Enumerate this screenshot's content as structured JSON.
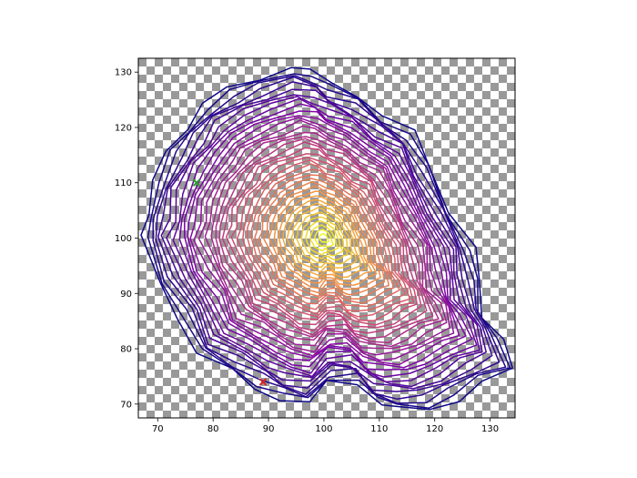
{
  "chart_data": {
    "type": "line",
    "title": "",
    "xlabel": "",
    "ylabel": "",
    "xlim": [
      66.5,
      134.5
    ],
    "ylim": [
      67.5,
      132.5
    ],
    "x_ticks": [
      70,
      80,
      90,
      100,
      110,
      120,
      130
    ],
    "y_ticks": [
      70,
      80,
      90,
      100,
      110,
      120,
      130
    ],
    "x_tick_labels": [
      "70",
      "80",
      "90",
      "100",
      "110",
      "120",
      "130"
    ],
    "y_tick_labels": [
      "70",
      "80",
      "90",
      "100",
      "110",
      "120",
      "130"
    ],
    "grid": false,
    "background": "checkerboard",
    "colormap": "plasma",
    "path_center": [
      100,
      100
    ],
    "outer_path_vertices": [
      [
        67,
        100
      ],
      [
        70,
        92
      ],
      [
        74,
        86
      ],
      [
        77,
        79
      ],
      [
        83,
        76
      ],
      [
        88,
        73
      ],
      [
        92,
        71
      ],
      [
        97,
        70
      ],
      [
        101,
        74
      ],
      [
        106,
        74
      ],
      [
        110,
        70
      ],
      [
        114,
        69
      ],
      [
        119,
        69
      ],
      [
        124,
        71
      ],
      [
        129,
        74
      ],
      [
        134,
        76
      ],
      [
        132,
        82
      ],
      [
        129,
        86
      ],
      [
        128,
        92
      ],
      [
        127,
        98
      ],
      [
        123,
        105
      ],
      [
        119,
        113
      ],
      [
        116,
        119
      ],
      [
        111,
        122
      ],
      [
        106,
        126
      ],
      [
        101,
        128
      ],
      [
        98,
        130
      ],
      [
        94,
        131
      ],
      [
        88,
        129
      ],
      [
        83,
        127
      ],
      [
        78,
        124
      ],
      [
        75,
        120
      ],
      [
        72,
        116
      ],
      [
        69,
        110
      ],
      [
        68,
        104
      ]
    ],
    "path_levels": 40,
    "markers": [
      {
        "x": 77,
        "y": 110,
        "symbol": "x",
        "color": "#2ca02c"
      },
      {
        "x": 89,
        "y": 74,
        "symbol": "x",
        "color": "#d62728"
      }
    ]
  }
}
